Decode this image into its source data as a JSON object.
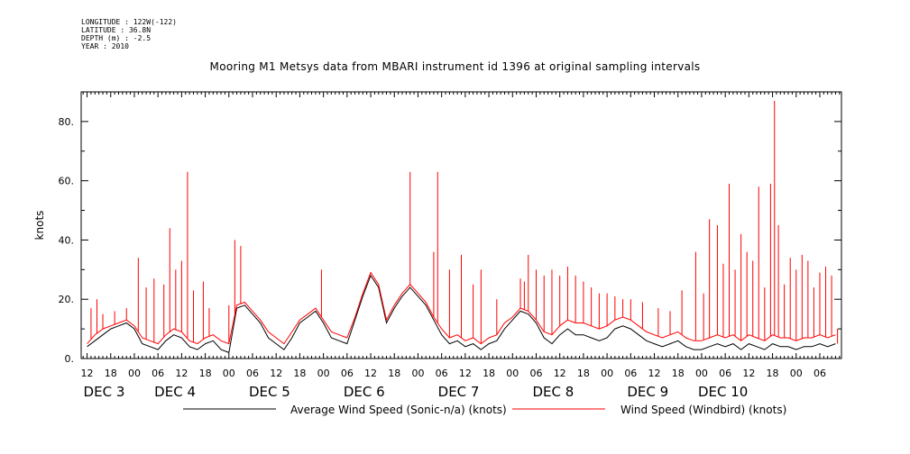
{
  "meta": {
    "longitude": "LONGITUDE : 122W(-122)",
    "latitude": "LATITUDE : 36.8N",
    "depth": "DEPTH (m) : -2.5",
    "year": "YEAR : 2010"
  },
  "chart_data": {
    "type": "line",
    "title": "Mooring M1 Metsys data from MBARI instrument id 1396 at original sampling intervals",
    "ylabel": "knots",
    "xlabel": "",
    "ylim": [
      0,
      90
    ],
    "xlim_hours": [
      -1.5,
      191.5
    ],
    "yticks": [
      0,
      20,
      40,
      60,
      80
    ],
    "ytick_labels": [
      "0.",
      "20.",
      "40.",
      "60.",
      "80."
    ],
    "xtick_hours": [
      0,
      6,
      12,
      18,
      24,
      30,
      36,
      42,
      48,
      54,
      60,
      66,
      72,
      78,
      84,
      90,
      96,
      102,
      108,
      114,
      120,
      126,
      132,
      138,
      144,
      150,
      156,
      162,
      168,
      174,
      180,
      186
    ],
    "xtick_labels": [
      "12",
      "18",
      "00",
      "06",
      "12",
      "18",
      "00",
      "06",
      "12",
      "18",
      "00",
      "06",
      "12",
      "18",
      "00",
      "06",
      "12",
      "18",
      "00",
      "06",
      "12",
      "18",
      "00",
      "06",
      "12",
      "18",
      "00",
      "06",
      "12",
      "18",
      "00",
      "06"
    ],
    "day_labels": [
      {
        "hour": 0,
        "text": "DEC  3"
      },
      {
        "hour": 18,
        "text": "DEC  4"
      },
      {
        "hour": 42,
        "text": "DEC  5"
      },
      {
        "hour": 66,
        "text": "DEC  6"
      },
      {
        "hour": 90,
        "text": "DEC  7"
      },
      {
        "hour": 114,
        "text": "DEC  8"
      },
      {
        "hour": 138,
        "text": "DEC  9"
      },
      {
        "hour": 156,
        "text": "DEC 10"
      }
    ],
    "x_units": "hours since Dec 3 12:00",
    "legend_position": "bottom",
    "grid": false,
    "series": [
      {
        "name": "Average Wind Speed (Sonic-n/a) (knots)",
        "color": "#000000",
        "x": [
          0,
          2,
          4,
          6,
          8,
          10,
          12,
          14,
          16,
          18,
          20,
          22,
          24,
          26,
          28,
          30,
          32,
          34,
          36,
          38,
          40,
          42,
          44,
          46,
          48,
          50,
          52,
          54,
          56,
          58,
          60,
          62,
          64,
          66,
          68,
          70,
          72,
          74,
          76,
          78,
          80,
          82,
          84,
          86,
          88,
          90,
          92,
          94,
          96,
          98,
          100,
          102,
          104,
          106,
          108,
          110,
          112,
          114,
          116,
          118,
          120,
          122,
          124,
          126,
          128,
          130,
          132,
          134,
          136,
          138,
          140,
          142,
          144,
          146,
          148,
          150,
          152,
          154,
          156,
          158,
          160,
          162,
          164,
          166,
          168,
          170,
          172,
          174,
          176,
          178,
          180,
          182,
          184,
          186,
          188,
          190
        ],
        "values": [
          4,
          6,
          8,
          10,
          11,
          12,
          10,
          5,
          4,
          3,
          6,
          8,
          7,
          4,
          3,
          5,
          6,
          3,
          2,
          17,
          18,
          15,
          12,
          7,
          5,
          3,
          7,
          12,
          14,
          16,
          12,
          7,
          6,
          5,
          13,
          21,
          28,
          24,
          12,
          17,
          21,
          24,
          21,
          18,
          13,
          8,
          5,
          6,
          4,
          5,
          3,
          5,
          6,
          10,
          13,
          16,
          15,
          12,
          7,
          5,
          8,
          10,
          8,
          8,
          7,
          6,
          7,
          10,
          11,
          10,
          8,
          6,
          5,
          4,
          5,
          6,
          4,
          3,
          3,
          4,
          5,
          4,
          5,
          3,
          5,
          4,
          3,
          5,
          4,
          4,
          3,
          4,
          4,
          5,
          4,
          5
        ]
      },
      {
        "name": "Wind Speed (Windbird) (knots)",
        "color": "#ff0000",
        "x": [
          0,
          2,
          4,
          6,
          8,
          10,
          12,
          14,
          16,
          18,
          20,
          22,
          24,
          26,
          28,
          30,
          32,
          34,
          36,
          38,
          40,
          42,
          44,
          46,
          48,
          50,
          52,
          54,
          56,
          58,
          60,
          62,
          64,
          66,
          68,
          70,
          72,
          74,
          76,
          78,
          80,
          82,
          84,
          86,
          88,
          90,
          92,
          94,
          96,
          98,
          100,
          102,
          104,
          106,
          108,
          110,
          112,
          114,
          116,
          118,
          120,
          122,
          124,
          126,
          128,
          130,
          132,
          134,
          136,
          138,
          140,
          142,
          144,
          146,
          148,
          150,
          152,
          154,
          156,
          158,
          160,
          162,
          164,
          166,
          168,
          170,
          172,
          174,
          176,
          178,
          180,
          182,
          184,
          186,
          188,
          190
        ],
        "values": [
          5,
          8,
          10,
          11,
          12,
          13,
          11,
          7,
          6,
          5,
          8,
          10,
          9,
          6,
          5,
          7,
          8,
          6,
          5,
          18,
          19,
          16,
          13,
          9,
          7,
          5,
          9,
          13,
          15,
          17,
          13,
          9,
          8,
          7,
          14,
          22,
          29,
          25,
          13,
          18,
          22,
          25,
          22,
          19,
          14,
          10,
          7,
          8,
          6,
          7,
          5,
          7,
          8,
          12,
          14,
          17,
          16,
          13,
          9,
          8,
          11,
          13,
          12,
          12,
          11,
          10,
          11,
          13,
          14,
          13,
          11,
          9,
          8,
          7,
          8,
          9,
          7,
          6,
          6,
          7,
          8,
          7,
          8,
          6,
          8,
          7,
          6,
          8,
          7,
          7,
          6,
          7,
          7,
          8,
          7,
          8
        ],
        "spikes": [
          {
            "x": 1.0,
            "y": 17
          },
          {
            "x": 2.5,
            "y": 20
          },
          {
            "x": 4.0,
            "y": 15
          },
          {
            "x": 7.0,
            "y": 16
          },
          {
            "x": 10.0,
            "y": 17
          },
          {
            "x": 13.0,
            "y": 34
          },
          {
            "x": 15.0,
            "y": 24
          },
          {
            "x": 17.0,
            "y": 27
          },
          {
            "x": 19.5,
            "y": 25
          },
          {
            "x": 21.0,
            "y": 44
          },
          {
            "x": 22.5,
            "y": 30
          },
          {
            "x": 24.0,
            "y": 33
          },
          {
            "x": 25.5,
            "y": 63
          },
          {
            "x": 27.0,
            "y": 23
          },
          {
            "x": 29.5,
            "y": 26
          },
          {
            "x": 31.0,
            "y": 17
          },
          {
            "x": 36.0,
            "y": 18
          },
          {
            "x": 37.5,
            "y": 40
          },
          {
            "x": 39.0,
            "y": 38
          },
          {
            "x": 59.5,
            "y": 30
          },
          {
            "x": 82.0,
            "y": 63
          },
          {
            "x": 88.0,
            "y": 36
          },
          {
            "x": 89.0,
            "y": 63
          },
          {
            "x": 92.0,
            "y": 30
          },
          {
            "x": 95.0,
            "y": 35
          },
          {
            "x": 98.0,
            "y": 25
          },
          {
            "x": 100.0,
            "y": 30
          },
          {
            "x": 104.0,
            "y": 20
          },
          {
            "x": 110.0,
            "y": 27
          },
          {
            "x": 111.0,
            "y": 26
          },
          {
            "x": 112.0,
            "y": 35
          },
          {
            "x": 114.0,
            "y": 30
          },
          {
            "x": 116.0,
            "y": 28
          },
          {
            "x": 118.0,
            "y": 30
          },
          {
            "x": 120.0,
            "y": 28
          },
          {
            "x": 122.0,
            "y": 31
          },
          {
            "x": 124.0,
            "y": 28
          },
          {
            "x": 126.0,
            "y": 26
          },
          {
            "x": 128.0,
            "y": 24
          },
          {
            "x": 130.0,
            "y": 22
          },
          {
            "x": 132.0,
            "y": 22
          },
          {
            "x": 134.0,
            "y": 21
          },
          {
            "x": 136.0,
            "y": 20
          },
          {
            "x": 138.0,
            "y": 20
          },
          {
            "x": 141.0,
            "y": 19
          },
          {
            "x": 145.0,
            "y": 17
          },
          {
            "x": 148.0,
            "y": 16
          },
          {
            "x": 151.0,
            "y": 23
          },
          {
            "x": 154.5,
            "y": 36
          },
          {
            "x": 156.5,
            "y": 22
          },
          {
            "x": 158.0,
            "y": 47
          },
          {
            "x": 160.0,
            "y": 45
          },
          {
            "x": 161.5,
            "y": 32
          },
          {
            "x": 163.0,
            "y": 59
          },
          {
            "x": 164.5,
            "y": 30
          },
          {
            "x": 166.0,
            "y": 42
          },
          {
            "x": 167.5,
            "y": 36
          },
          {
            "x": 169.0,
            "y": 33
          },
          {
            "x": 170.5,
            "y": 58
          },
          {
            "x": 172.0,
            "y": 24
          },
          {
            "x": 173.5,
            "y": 59
          },
          {
            "x": 174.5,
            "y": 87
          },
          {
            "x": 175.5,
            "y": 45
          },
          {
            "x": 177.0,
            "y": 25
          },
          {
            "x": 178.5,
            "y": 34
          },
          {
            "x": 180.0,
            "y": 30
          },
          {
            "x": 181.5,
            "y": 35
          },
          {
            "x": 183.0,
            "y": 33
          },
          {
            "x": 184.5,
            "y": 24
          },
          {
            "x": 186.0,
            "y": 29
          },
          {
            "x": 187.5,
            "y": 31
          },
          {
            "x": 189.0,
            "y": 28
          },
          {
            "x": 190.5,
            "y": 10
          }
        ]
      }
    ]
  }
}
